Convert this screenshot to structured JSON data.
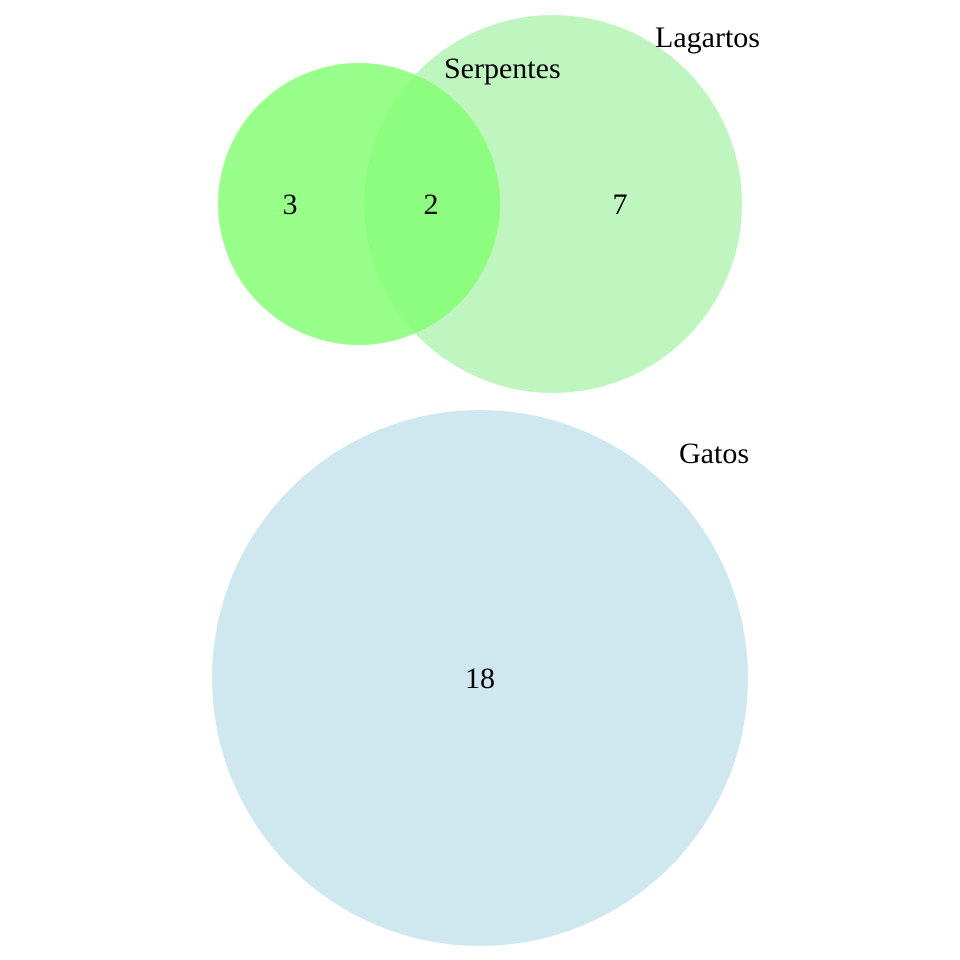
{
  "diagram": {
    "type": "venn",
    "sets": [
      {
        "id": "lagartos",
        "label": "Lagartos",
        "color": "#90ee90",
        "opacity": 0.58
      },
      {
        "id": "serpentes",
        "label": "Serpentes",
        "color": "#7fff6e",
        "opacity": 0.8
      },
      {
        "id": "gatos",
        "label": "Gatos",
        "color": "#add8e6",
        "opacity": 0.58
      }
    ],
    "regions": [
      {
        "sets": [
          "serpentes"
        ],
        "count": "3"
      },
      {
        "sets": [
          "serpentes",
          "lagartos"
        ],
        "count": "2"
      },
      {
        "sets": [
          "lagartos"
        ],
        "count": "7"
      },
      {
        "sets": [
          "gatos"
        ],
        "count": "18"
      }
    ]
  }
}
